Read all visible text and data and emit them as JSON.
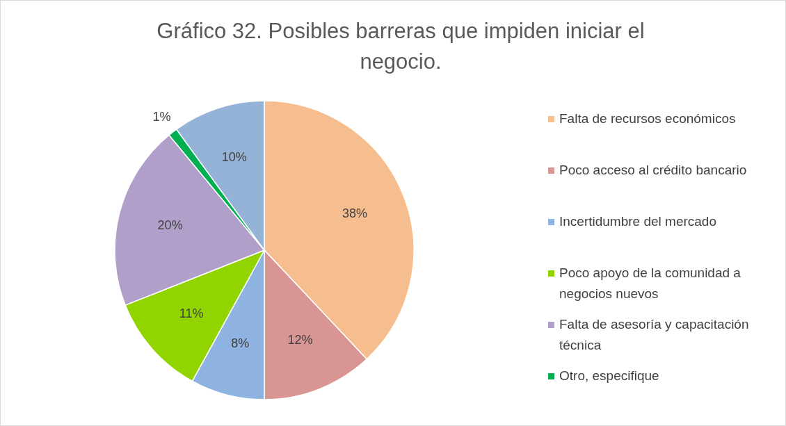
{
  "chart_data": {
    "type": "pie",
    "title": "Gráfico 32. Posibles barreras que impiden iniciar el negocio.",
    "categories": [
      "Falta de recursos económicos",
      "Poco acceso al crédito bancario",
      "Incertidumbre del mercado",
      "Poco apoyo de la comunidad a negocios nuevos",
      "Falta de asesoría y capacitación técnica",
      "Otro, especifique",
      null
    ],
    "values": [
      38,
      12,
      8,
      11,
      20,
      1,
      10
    ],
    "value_labels": [
      "38%",
      "12%",
      "8%",
      "11%",
      "20%",
      "1%",
      "10%"
    ],
    "colors": [
      "#f6be8e",
      "#d99594",
      "#8eb3e0",
      "#92d400",
      "#b09fc9",
      "#00b050",
      "#95b3d7"
    ],
    "legend": "right"
  }
}
